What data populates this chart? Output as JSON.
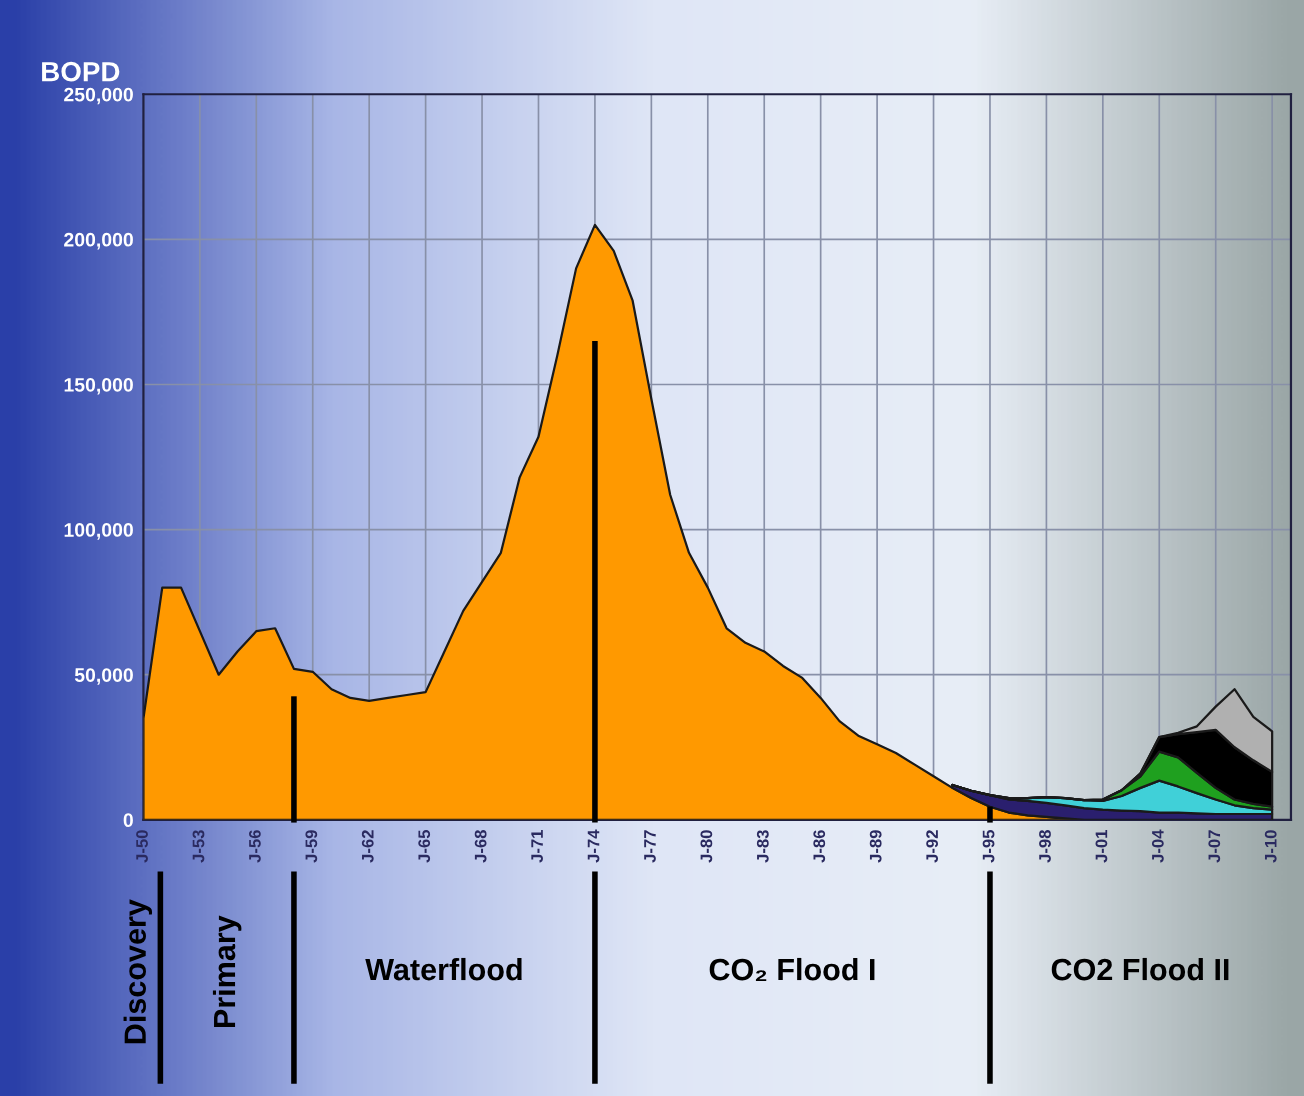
{
  "chart_data": {
    "type": "area",
    "ylabel": "BOPD",
    "stacked": true,
    "grid": true,
    "categories": [
      "J-50",
      null,
      null,
      "J-53",
      null,
      null,
      "J-56",
      null,
      null,
      "J-59",
      null,
      null,
      "J-62",
      null,
      null,
      "J-65",
      null,
      null,
      "J-68",
      null,
      null,
      "J-71",
      null,
      null,
      "J-74",
      null,
      null,
      "J-77",
      null,
      null,
      "J-80",
      null,
      null,
      "J-83",
      null,
      null,
      "J-86",
      null,
      null,
      "J-89",
      null,
      null,
      "J-92",
      null,
      null,
      "J-95",
      null,
      null,
      "J-98",
      null,
      null,
      "J-01",
      null,
      null,
      "J-04",
      null,
      null,
      "J-07",
      null,
      null,
      "J-10"
    ],
    "ylim": [
      0,
      250000
    ],
    "yticks": [
      0,
      {
        "value": 50000,
        "label": "50,000"
      },
      {
        "value": 100000,
        "label": "100,000"
      },
      {
        "value": 150000,
        "label": "150,000"
      },
      {
        "value": 200000,
        "label": "200,000"
      },
      {
        "value": 250000,
        "label": "250,000"
      }
    ],
    "series": [
      {
        "color": "#ff9900",
        "values": [
          35000,
          80000,
          80000,
          65000,
          50000,
          58000,
          65000,
          66000,
          52000,
          51000,
          45000,
          42000,
          41000,
          42000,
          43000,
          44000,
          58000,
          72000,
          82000,
          92000,
          118000,
          132000,
          160000,
          190000,
          205000,
          196000,
          179000,
          145000,
          112000,
          92000,
          80000,
          66000,
          61000,
          58000,
          53000,
          49000,
          42000,
          34000,
          29000,
          26000,
          23000,
          19000,
          15000,
          11000,
          7500,
          4500,
          2500,
          1500,
          1000,
          500,
          0,
          0,
          0,
          0,
          0,
          0,
          0,
          0,
          0,
          0,
          0
        ]
      },
      {
        "color": "#2a1f6e",
        "values": [
          null,
          null,
          null,
          null,
          null,
          null,
          null,
          null,
          null,
          null,
          null,
          null,
          null,
          null,
          null,
          null,
          null,
          null,
          null,
          null,
          null,
          null,
          null,
          null,
          null,
          null,
          null,
          null,
          null,
          null,
          null,
          null,
          null,
          null,
          null,
          null,
          null,
          null,
          null,
          null,
          null,
          null,
          null,
          1000,
          2500,
          4000,
          4500,
          5000,
          4800,
          4500,
          4000,
          3500,
          3200,
          3000,
          2500,
          2500,
          2200,
          2000,
          2000,
          2000,
          2000
        ]
      },
      {
        "color": "#40d0d8",
        "values": [
          null,
          null,
          null,
          null,
          null,
          null,
          null,
          null,
          null,
          null,
          null,
          null,
          null,
          null,
          null,
          null,
          null,
          null,
          null,
          null,
          null,
          null,
          null,
          null,
          null,
          null,
          null,
          null,
          null,
          null,
          null,
          null,
          null,
          null,
          null,
          null,
          null,
          null,
          null,
          null,
          null,
          null,
          null,
          0,
          0,
          0,
          500,
          1000,
          2000,
          2500,
          2800,
          3000,
          5000,
          8000,
          11000,
          9000,
          7000,
          5000,
          3000,
          2000,
          1500
        ]
      },
      {
        "color": "#1fa01f",
        "values": [
          null,
          null,
          null,
          null,
          null,
          null,
          null,
          null,
          null,
          null,
          null,
          null,
          null,
          null,
          null,
          null,
          null,
          null,
          null,
          null,
          null,
          null,
          null,
          null,
          null,
          null,
          null,
          null,
          null,
          null,
          null,
          null,
          null,
          null,
          null,
          null,
          null,
          null,
          null,
          null,
          null,
          null,
          null,
          0,
          0,
          0,
          0,
          0,
          0,
          0,
          0,
          500,
          2000,
          4000,
          10000,
          10000,
          7000,
          4000,
          2000,
          1500,
          1000
        ]
      },
      {
        "color": "#000000",
        "values": [
          null,
          null,
          null,
          null,
          null,
          null,
          null,
          null,
          null,
          null,
          null,
          null,
          null,
          null,
          null,
          null,
          null,
          null,
          null,
          null,
          null,
          null,
          null,
          null,
          null,
          null,
          null,
          null,
          null,
          null,
          null,
          null,
          null,
          null,
          null,
          null,
          null,
          null,
          null,
          null,
          null,
          null,
          null,
          0,
          0,
          0,
          0,
          0,
          0,
          0,
          0,
          0,
          0,
          1000,
          5000,
          8000,
          14000,
          20000,
          18000,
          15000,
          12000
        ]
      },
      {
        "color": "#b0b0b0",
        "values": [
          null,
          null,
          null,
          null,
          null,
          null,
          null,
          null,
          null,
          null,
          null,
          null,
          null,
          null,
          null,
          null,
          null,
          null,
          null,
          null,
          null,
          null,
          null,
          null,
          null,
          null,
          null,
          null,
          null,
          null,
          null,
          null,
          null,
          null,
          null,
          null,
          null,
          null,
          null,
          null,
          null,
          null,
          null,
          0,
          0,
          0,
          0,
          0,
          0,
          0,
          0,
          0,
          0,
          0,
          0,
          500,
          2000,
          8000,
          20000,
          15000,
          14000
        ]
      }
    ],
    "annotations": [
      "Discovery",
      "Primary",
      "Waterflood",
      "CO₂ Flood I",
      "CO2 Flood II"
    ]
  }
}
